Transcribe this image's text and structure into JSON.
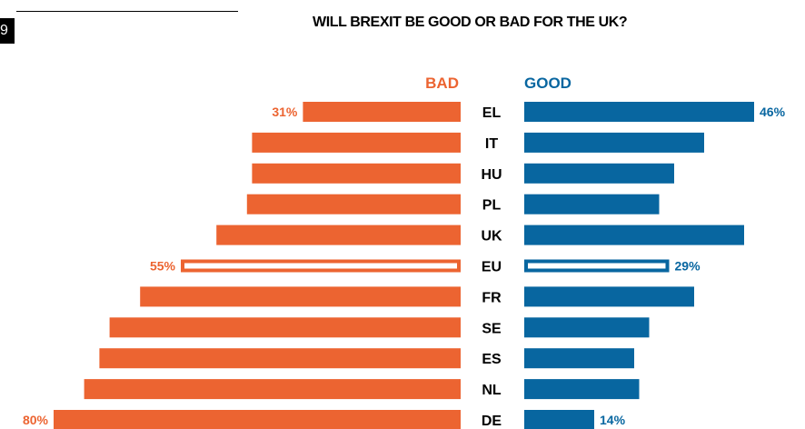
{
  "page_badge": "9",
  "chart_data": {
    "type": "bar",
    "title": "WILL BREXIT BE GOOD OR BAD FOR THE UK?",
    "categories": [
      "EL",
      "IT",
      "HU",
      "PL",
      "UK",
      "EU",
      "FR",
      "SE",
      "ES",
      "NL",
      "DE"
    ],
    "series": [
      {
        "name": "BAD",
        "color": "#ec6431",
        "values": [
          31,
          41,
          41,
          42,
          48,
          55,
          63,
          69,
          71,
          74,
          80
        ],
        "labels": [
          "31%",
          "",
          "",
          "",
          "",
          "55%",
          "",
          "",
          "",
          "",
          "80%"
        ]
      },
      {
        "name": "GOOD",
        "color": "#0866a0",
        "values": [
          46,
          36,
          30,
          27,
          44,
          29,
          34,
          25,
          22,
          23,
          14
        ],
        "labels": [
          "46%",
          "",
          "",
          "",
          "",
          "29%",
          "",
          "",
          "",
          "",
          "14%"
        ]
      }
    ],
    "highlight_category": "EU",
    "layout": "diverging bars, BAD to the left, GOOD to the right"
  }
}
